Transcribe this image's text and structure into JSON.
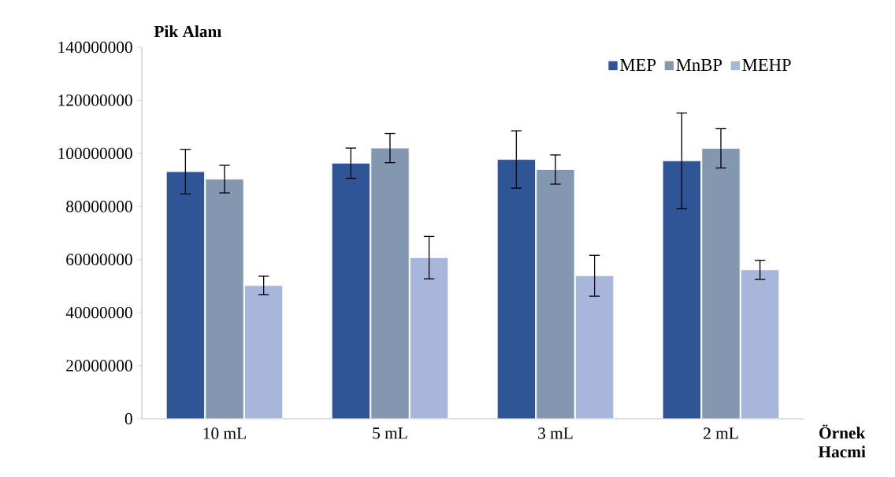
{
  "chart_data": {
    "type": "bar",
    "ylabel": "Pik Alanı",
    "xlabel": "Örnek Hacmi",
    "categories": [
      "10 mL",
      "5 mL",
      "3 mL",
      "2 mL"
    ],
    "series": [
      {
        "name": "MEP",
        "color": "#2f5597",
        "values": [
          93100000,
          96300000,
          97700000,
          97200000
        ],
        "errors": [
          8400000,
          5700000,
          10800000,
          18000000
        ]
      },
      {
        "name": "MnBP",
        "color": "#8497b0",
        "values": [
          90300000,
          102000000,
          93900000,
          101900000
        ],
        "errors": [
          5200000,
          5500000,
          5500000,
          7400000
        ]
      },
      {
        "name": "MEHP",
        "color": "#a9b6dc",
        "values": [
          50200000,
          60700000,
          53900000,
          56100000
        ],
        "errors": [
          3500000,
          8000000,
          7700000,
          3600000
        ]
      }
    ],
    "ylim": [
      0,
      140000000
    ],
    "yticks": [
      0,
      20000000,
      40000000,
      60000000,
      80000000,
      100000000,
      120000000,
      140000000
    ],
    "legend": "top right",
    "grid": false
  }
}
